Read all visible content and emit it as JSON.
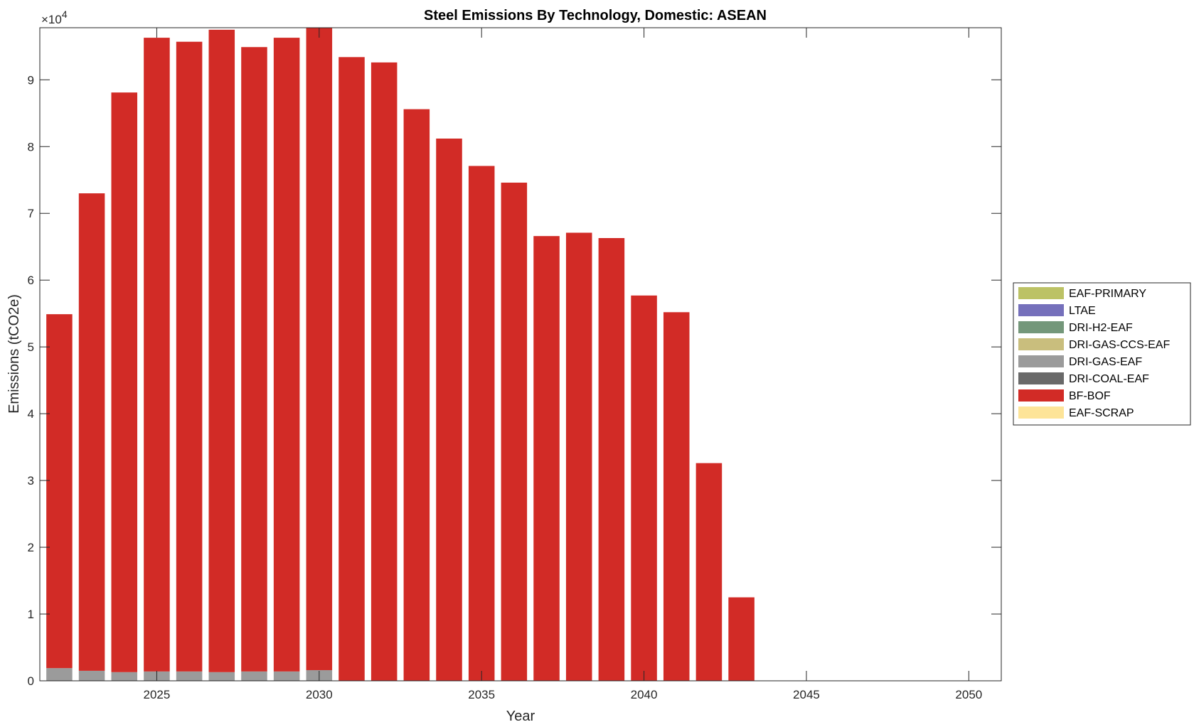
{
  "chart_data": {
    "type": "bar",
    "stacked": true,
    "title": "Steel Emissions By Technology, Domestic: ASEAN",
    "xlabel": "Year",
    "ylabel": "Emissions (tCO2e)",
    "y_exponent_label": "×10",
    "y_exponent_power": "4",
    "x": [
      2022,
      2023,
      2024,
      2025,
      2026,
      2027,
      2028,
      2029,
      2030,
      2031,
      2032,
      2033,
      2034,
      2035,
      2036,
      2037,
      2038,
      2039,
      2040,
      2041,
      2042,
      2043,
      2044,
      2045,
      2046,
      2047,
      2048,
      2049,
      2050
    ],
    "xlim": [
      2021.4,
      2051.0
    ],
    "ylim": [
      0,
      9.78
    ],
    "x_ticks": [
      2025,
      2030,
      2035,
      2040,
      2045,
      2050
    ],
    "x_tick_labels": [
      "2025",
      "2030",
      "2035",
      "2040",
      "2045",
      "2050"
    ],
    "y_ticks": [
      0,
      1,
      2,
      3,
      4,
      5,
      6,
      7,
      8,
      9
    ],
    "y_tick_labels": [
      "0",
      "1",
      "2",
      "3",
      "4",
      "5",
      "6",
      "7",
      "8",
      "9"
    ],
    "grid": false,
    "legend_position": "outside-right",
    "series": [
      {
        "name": "EAF-PRIMARY",
        "color": "#bcc265",
        "values": [
          0,
          0,
          0,
          0,
          0,
          0,
          0,
          0,
          0,
          0,
          0,
          0,
          0,
          0,
          0,
          0,
          0,
          0,
          0,
          0,
          0,
          0,
          0,
          0,
          0,
          0,
          0,
          0,
          0
        ]
      },
      {
        "name": "LTAE",
        "color": "#7570bb",
        "values": [
          0,
          0,
          0,
          0,
          0,
          0,
          0,
          0,
          0,
          0,
          0,
          0,
          0,
          0,
          0,
          0,
          0,
          0,
          0,
          0,
          0,
          0,
          0,
          0,
          0,
          0,
          0,
          0,
          0
        ]
      },
      {
        "name": "DRI-H2-EAF",
        "color": "#74977a",
        "values": [
          0,
          0,
          0,
          0,
          0,
          0,
          0,
          0,
          0,
          0,
          0,
          0,
          0,
          0,
          0,
          0,
          0,
          0,
          0,
          0,
          0,
          0,
          0,
          0,
          0,
          0,
          0,
          0,
          0
        ]
      },
      {
        "name": "DRI-GAS-CCS-EAF",
        "color": "#c9be7d",
        "values": [
          0,
          0,
          0,
          0,
          0,
          0,
          0,
          0,
          0,
          0,
          0,
          0,
          0,
          0,
          0,
          0,
          0,
          0,
          0,
          0,
          0,
          0,
          0,
          0,
          0,
          0,
          0,
          0,
          0
        ]
      },
      {
        "name": "DRI-GAS-EAF",
        "color": "#9b9b9b",
        "values": [
          0.19,
          0.15,
          0.13,
          0.14,
          0.14,
          0.13,
          0.14,
          0.14,
          0.16,
          0,
          0,
          0,
          0,
          0,
          0,
          0,
          0,
          0,
          0,
          0,
          0,
          0,
          0,
          0,
          0,
          0,
          0,
          0,
          0
        ]
      },
      {
        "name": "DRI-COAL-EAF",
        "color": "#696969",
        "values": [
          0,
          0,
          0,
          0,
          0,
          0,
          0,
          0,
          0,
          0,
          0,
          0,
          0,
          0,
          0,
          0,
          0,
          0,
          0,
          0,
          0,
          0,
          0,
          0,
          0,
          0,
          0,
          0,
          0
        ]
      },
      {
        "name": "BF-BOF",
        "color": "#d22b26",
        "values": [
          5.3,
          7.15,
          8.68,
          9.49,
          9.43,
          9.62,
          9.35,
          9.49,
          9.77,
          9.34,
          9.26,
          8.56,
          8.12,
          7.71,
          7.46,
          6.66,
          6.71,
          6.63,
          5.77,
          5.52,
          3.26,
          1.25,
          0,
          0,
          0,
          0,
          0,
          0,
          0
        ]
      },
      {
        "name": "EAF-SCRAP",
        "color": "#fde498",
        "values": [
          0,
          0,
          0,
          0,
          0,
          0,
          0,
          0,
          0,
          0,
          0,
          0,
          0,
          0,
          0,
          0,
          0,
          0,
          0,
          0,
          0,
          0,
          0,
          0,
          0,
          0,
          0,
          0,
          0
        ]
      }
    ]
  }
}
